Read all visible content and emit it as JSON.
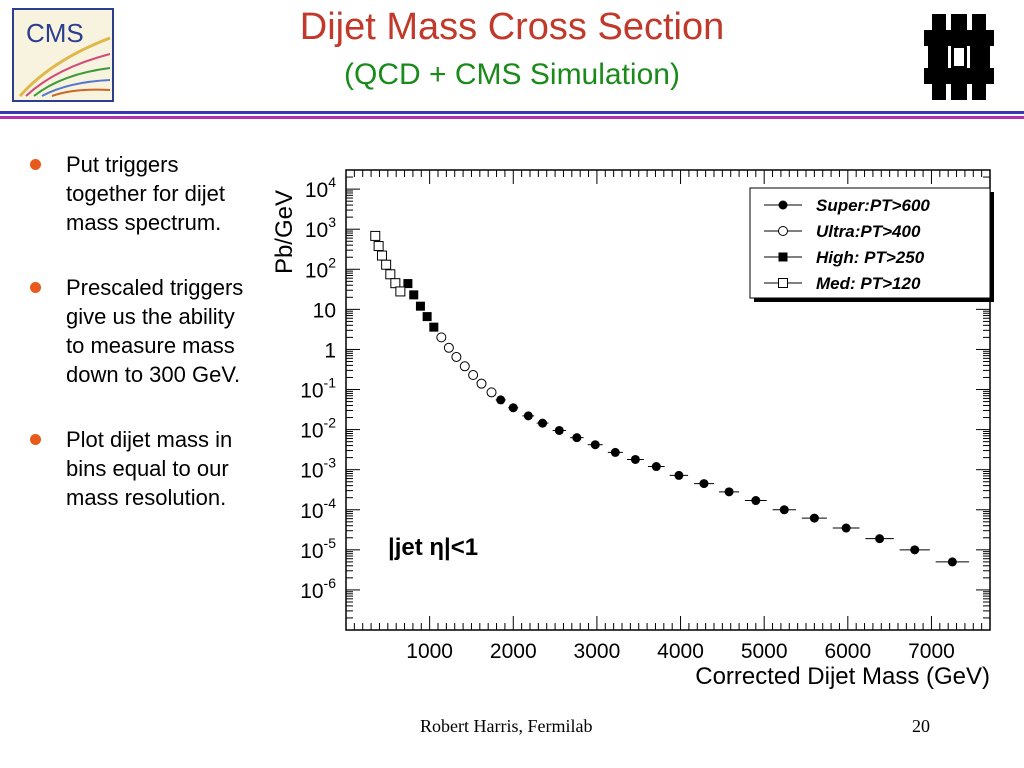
{
  "header": {
    "title": "Dijet Mass Cross Section",
    "subtitle": "(QCD + CMS Simulation)",
    "left_logo_text": "CMS",
    "title_color": "#c0392b",
    "subtitle_color": "#1a8a1a",
    "rule_colors": [
      "#3a3ab0",
      "#b032b0"
    ]
  },
  "bullets": [
    "Put triggers together for dijet mass spectrum.",
    "Prescaled triggers give us the ability to measure mass down to 300 GeV.",
    "Plot dijet mass in bins equal to our mass resolution."
  ],
  "footer": {
    "author": "Robert Harris, Fermilab",
    "page": "20"
  },
  "chart_data": {
    "type": "scatter",
    "title": "",
    "xlabel": "Corrected Dijet Mass (GeV)",
    "ylabel": "Pb/GeV",
    "y_scale": "log",
    "xlim": [
      0,
      7700
    ],
    "ylim": [
      1e-07,
      30000
    ],
    "x_ticks": [
      1000,
      2000,
      3000,
      4000,
      5000,
      6000,
      7000
    ],
    "x_tick_labels": [
      "1000",
      "2000",
      "3000",
      "4000",
      "5000",
      "6000",
      "7000"
    ],
    "y_ticks": [
      {
        "exp": 4,
        "label": "10",
        "sup": "4"
      },
      {
        "exp": 3,
        "label": "10",
        "sup": "3"
      },
      {
        "exp": 2,
        "label": "10",
        "sup": "2"
      },
      {
        "exp": 1,
        "label": "10",
        "sup": ""
      },
      {
        "exp": 0,
        "label": "1",
        "sup": ""
      },
      {
        "exp": -1,
        "label": "10",
        "sup": "-1"
      },
      {
        "exp": -2,
        "label": "10",
        "sup": "-2"
      },
      {
        "exp": -3,
        "label": "10",
        "sup": "-3"
      },
      {
        "exp": -4,
        "label": "10",
        "sup": "-4"
      },
      {
        "exp": -5,
        "label": "10",
        "sup": "-5"
      },
      {
        "exp": -6,
        "label": "10",
        "sup": "-6"
      }
    ],
    "annotation": "|jet η|<1",
    "legend_position": "top-right",
    "series": [
      {
        "name": "Super:PT>600",
        "marker": "filled-circle",
        "points": [
          [
            1850,
            0.055
          ],
          [
            2000,
            0.035
          ],
          [
            2180,
            0.022
          ],
          [
            2350,
            0.0145
          ],
          [
            2550,
            0.0095
          ],
          [
            2760,
            0.0063
          ],
          [
            2980,
            0.0042
          ],
          [
            3220,
            0.0027
          ],
          [
            3460,
            0.0018
          ],
          [
            3710,
            0.0012
          ],
          [
            3980,
            0.00072
          ],
          [
            4280,
            0.00045
          ],
          [
            4580,
            0.00028
          ],
          [
            4900,
            0.00017
          ],
          [
            5240,
            0.0001
          ],
          [
            5600,
            6.2e-05
          ],
          [
            5980,
            3.5e-05
          ],
          [
            6380,
            1.9e-05
          ],
          [
            6800,
            1e-05
          ],
          [
            7250,
            5e-06
          ]
        ],
        "xerr": [
          60,
          60,
          70,
          70,
          80,
          80,
          90,
          90,
          100,
          100,
          110,
          120,
          120,
          130,
          140,
          150,
          160,
          170,
          180,
          200
        ]
      },
      {
        "name": "Ultra:PT>400",
        "marker": "open-circle",
        "points": [
          [
            1140,
            2.0
          ],
          [
            1230,
            1.1
          ],
          [
            1320,
            0.65
          ],
          [
            1420,
            0.38
          ],
          [
            1520,
            0.23
          ],
          [
            1620,
            0.14
          ],
          [
            1740,
            0.085
          ]
        ],
        "xerr": [
          40,
          40,
          45,
          45,
          50,
          50,
          55
        ]
      },
      {
        "name": "High: PT>250",
        "marker": "filled-square",
        "points": [
          [
            740,
            44
          ],
          [
            810,
            23
          ],
          [
            890,
            12
          ],
          [
            970,
            6.6
          ],
          [
            1050,
            3.6
          ]
        ],
        "xerr": [
          30,
          30,
          35,
          35,
          40
        ]
      },
      {
        "name": "Med:  PT>120",
        "marker": "open-square",
        "points": [
          [
            350,
            680
          ],
          [
            390,
            380
          ],
          [
            430,
            220
          ],
          [
            480,
            130
          ],
          [
            530,
            75
          ],
          [
            590,
            45
          ],
          [
            650,
            28
          ]
        ],
        "xerr": [
          15,
          18,
          20,
          22,
          25,
          28,
          30
        ]
      }
    ]
  }
}
